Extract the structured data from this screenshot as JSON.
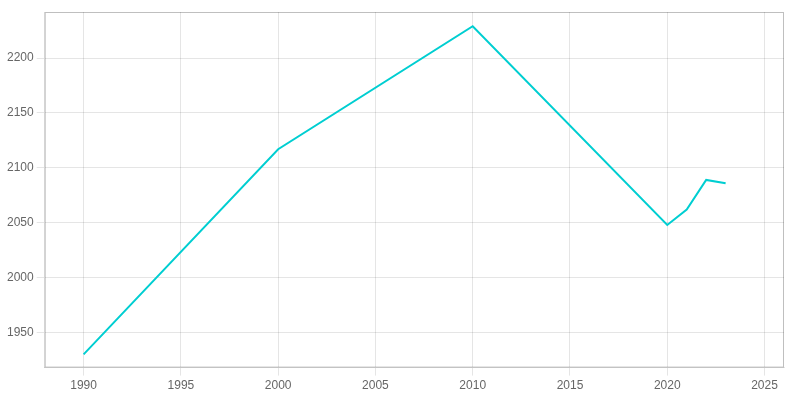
{
  "chart_data": {
    "type": "line",
    "x": [
      1990,
      2000,
      2010,
      2020,
      2021,
      2022,
      2023
    ],
    "values": [
      1930,
      2117,
      2229,
      2048,
      2062,
      2089,
      2086
    ],
    "color": "#00CED1",
    "xlim": [
      1988,
      2026
    ],
    "ylim": [
      1918,
      2242
    ],
    "xticks": [
      1990,
      1995,
      2000,
      2005,
      2010,
      2015,
      2020,
      2025
    ],
    "yticks": [
      1950,
      2000,
      2050,
      2100,
      2150,
      2200
    ],
    "grid": true
  }
}
